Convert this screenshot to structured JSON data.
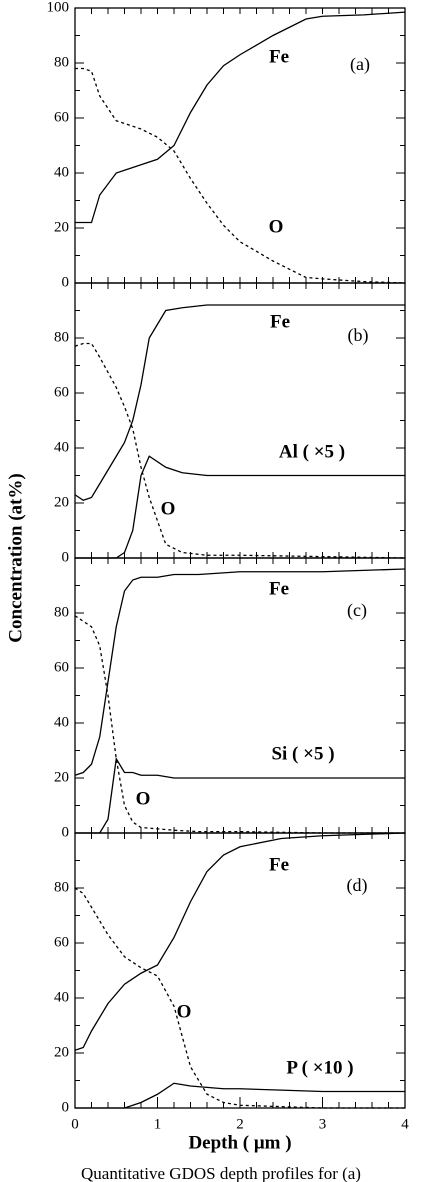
{
  "chart_data": [
    {
      "type": "line",
      "panel_label": "(a)",
      "ylabel": "Concentration (at%)",
      "x": [
        0,
        0.1,
        0.2,
        0.3,
        0.5,
        0.8,
        1.0,
        1.2,
        1.4,
        1.6,
        1.8,
        2.0,
        2.4,
        2.8,
        3.0,
        3.5,
        4.0
      ],
      "series": [
        {
          "name": "Fe",
          "color": "#000000",
          "dashed": false,
          "values": [
            22,
            22,
            22,
            32,
            40,
            43,
            45,
            50,
            62,
            72,
            79,
            83,
            90,
            96,
            97,
            97.5,
            98.5
          ]
        },
        {
          "name": "O",
          "color": "#000000",
          "dashed": true,
          "values": [
            78,
            78,
            77,
            68,
            59,
            56,
            53,
            48,
            38,
            29,
            21,
            15,
            8,
            2,
            1.5,
            0.5,
            0
          ]
        }
      ],
      "xlim": [
        0,
        4
      ],
      "ylim": [
        0,
        100
      ],
      "yticks": [
        0,
        20,
        40,
        60,
        80,
        100
      ]
    },
    {
      "type": "line",
      "panel_label": "(b)",
      "x": [
        0,
        0.1,
        0.2,
        0.3,
        0.5,
        0.6,
        0.7,
        0.8,
        0.9,
        1.1,
        1.3,
        1.6,
        2,
        3,
        4
      ],
      "series": [
        {
          "name": "Fe",
          "color": "#000000",
          "dashed": false,
          "values": [
            23,
            21,
            22,
            27,
            37,
            42,
            50,
            63,
            80,
            90,
            91,
            92,
            92,
            92,
            92
          ]
        },
        {
          "name": "Al ( ×5 )",
          "color": "#000000",
          "dashed": false,
          "values": [
            0,
            0,
            0,
            0,
            0,
            2,
            10,
            30,
            37,
            33,
            31,
            30,
            30,
            30,
            30
          ]
        },
        {
          "name": "O",
          "color": "#000000",
          "dashed": true,
          "values": [
            77,
            78,
            78,
            73,
            62,
            55,
            47,
            33,
            22,
            5,
            2,
            1,
            1,
            0.5,
            0
          ]
        }
      ],
      "xlim": [
        0,
        4
      ],
      "ylim": [
        0,
        100
      ],
      "yticks": [
        0,
        20,
        40,
        60,
        80
      ]
    },
    {
      "type": "line",
      "panel_label": "(c)",
      "x": [
        0,
        0.1,
        0.2,
        0.3,
        0.4,
        0.5,
        0.6,
        0.7,
        0.8,
        1.0,
        1.2,
        1.5,
        2,
        3,
        4
      ],
      "series": [
        {
          "name": "Fe",
          "color": "#000000",
          "dashed": false,
          "values": [
            21,
            22,
            25,
            35,
            55,
            75,
            88,
            92,
            93,
            93,
            94,
            94,
            95,
            95,
            96
          ]
        },
        {
          "name": "Si ( ×5 )",
          "color": "#000000",
          "dashed": false,
          "values": [
            0,
            0,
            0,
            0,
            5,
            27,
            22,
            22,
            21,
            21,
            20,
            20,
            20,
            20,
            20
          ]
        },
        {
          "name": "O",
          "color": "#000000",
          "dashed": true,
          "values": [
            79,
            77,
            75,
            68,
            50,
            27,
            10,
            4,
            2,
            1.5,
            1,
            0.5,
            0.5,
            0,
            0
          ]
        }
      ],
      "xlim": [
        0,
        4
      ],
      "ylim": [
        0,
        100
      ],
      "yticks": [
        0,
        20,
        40,
        60,
        80
      ]
    },
    {
      "type": "line",
      "panel_label": "(d)",
      "xlabel": "Depth ( μm )",
      "x": [
        0,
        0.1,
        0.2,
        0.4,
        0.6,
        0.8,
        1.0,
        1.2,
        1.4,
        1.6,
        1.8,
        2,
        2.5,
        3,
        4
      ],
      "series": [
        {
          "name": "Fe",
          "color": "#000000",
          "dashed": false,
          "values": [
            21,
            22,
            28,
            38,
            45,
            49,
            52,
            62,
            75,
            86,
            92,
            95,
            98,
            99,
            100
          ]
        },
        {
          "name": "O",
          "color": "#000000",
          "dashed": true,
          "values": [
            80,
            78,
            73,
            63,
            55,
            51,
            48,
            37,
            15,
            5,
            2,
            1,
            0.5,
            0,
            0
          ]
        },
        {
          "name": "P ( ×10 )",
          "color": "#000000",
          "dashed": false,
          "values": [
            0,
            0,
            0,
            0,
            0,
            2,
            5,
            9,
            8,
            7.5,
            7,
            7,
            6.5,
            6,
            6
          ]
        }
      ],
      "xlim": [
        0,
        4
      ],
      "ylim": [
        0,
        100
      ],
      "yticks": [
        0,
        20,
        40,
        60,
        80
      ],
      "xticks": [
        0,
        1,
        2,
        3,
        4
      ]
    }
  ],
  "caption": "Quantitative GDOS depth profiles for (a)"
}
